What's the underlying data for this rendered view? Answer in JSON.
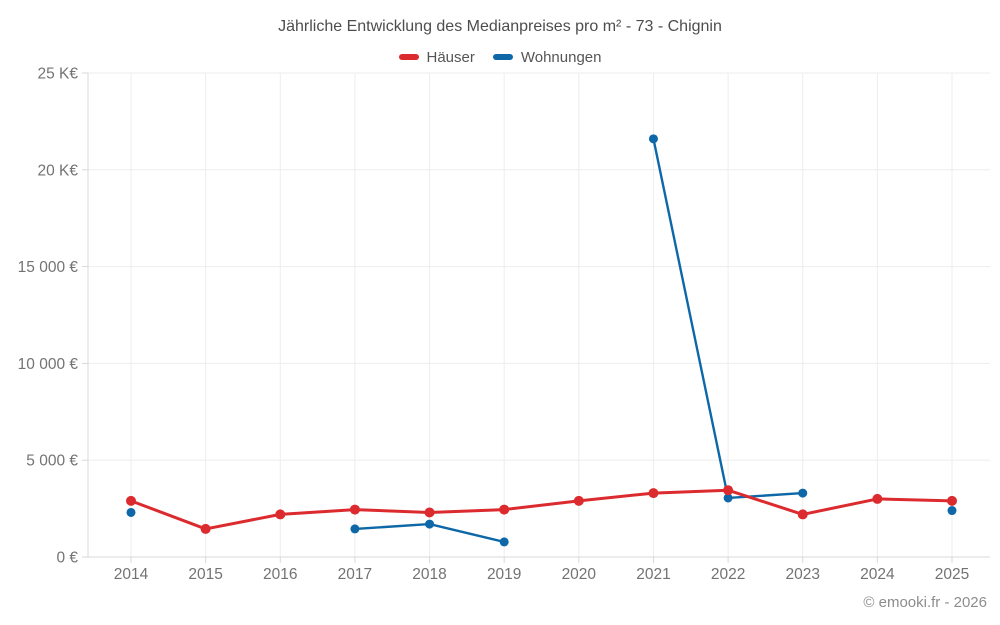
{
  "copyright": "© emooki.fr - 2026",
  "chart_data": {
    "type": "line",
    "title": "Jährliche Entwicklung des Medianpreises pro m² - 73 - Chignin",
    "x": [
      2014,
      2015,
      2016,
      2017,
      2018,
      2019,
      2020,
      2021,
      2022,
      2023,
      2024,
      2025
    ],
    "series": [
      {
        "name": "Häuser",
        "color": "#DC2B2E",
        "values": [
          2900,
          1450,
          2200,
          2450,
          2300,
          2450,
          2900,
          3300,
          3450,
          2200,
          3000,
          2900
        ]
      },
      {
        "name": "Wohnungen",
        "color": "#0E68A8",
        "values": [
          2300,
          null,
          null,
          1450,
          1700,
          780,
          null,
          21600,
          3050,
          3300,
          null,
          2400
        ]
      }
    ],
    "ylim": [
      0,
      25000
    ],
    "y_ticks": [
      {
        "value": 0,
        "label": "0 €"
      },
      {
        "value": 5000,
        "label": "5 000 €"
      },
      {
        "value": 10000,
        "label": "10 000 €"
      },
      {
        "value": 15000,
        "label": "15 000 €"
      },
      {
        "value": 20000,
        "label": "20 K€"
      },
      {
        "value": 25000,
        "label": "25 K€"
      }
    ],
    "grid": true,
    "legend_position": "top"
  }
}
